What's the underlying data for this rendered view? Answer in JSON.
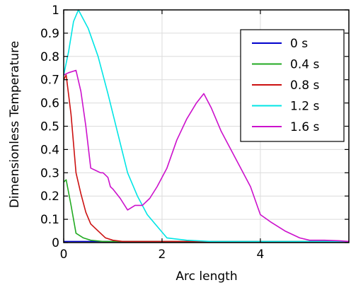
{
  "chart_data": {
    "type": "line",
    "title": "",
    "xlabel": "Arc length",
    "ylabel": "Dimensionless Temperature",
    "xlim": [
      0,
      5.8
    ],
    "ylim": [
      0,
      1
    ],
    "xticks": [
      0,
      2,
      4
    ],
    "xtick_labels": [
      "0",
      "2",
      "4"
    ],
    "yticks": [
      0,
      0.1,
      0.2,
      0.3,
      0.4,
      0.5,
      0.6,
      0.7,
      0.8,
      0.9,
      1.0
    ],
    "ytick_labels": [
      "0",
      "0.1",
      "0.2",
      "0.3",
      "0.4",
      "0.5",
      "0.6",
      "0.7",
      "0.8",
      "0.9",
      "1"
    ],
    "grid": true,
    "legend_position": "top-right",
    "series": [
      {
        "name": "0 s",
        "color": "#0000cd",
        "x": [
          0,
          1,
          2,
          3,
          4,
          5,
          5.8
        ],
        "y": [
          0.005,
          0.005,
          0.005,
          0.005,
          0.005,
          0.005,
          0.005
        ]
      },
      {
        "name": "0.4 s",
        "color": "#22aa22",
        "x": [
          0,
          0.05,
          0.15,
          0.25,
          0.4,
          0.55,
          0.8,
          1.0,
          1.5,
          2,
          3,
          4,
          5,
          5.8
        ],
        "y": [
          0.26,
          0.27,
          0.16,
          0.04,
          0.02,
          0.01,
          0.005,
          0.005,
          0.005,
          0.005,
          0.005,
          0.005,
          0.005,
          0.005
        ]
      },
      {
        "name": "0.8 s",
        "color": "#cc1111",
        "x": [
          0,
          0.05,
          0.15,
          0.25,
          0.35,
          0.45,
          0.55,
          0.7,
          0.85,
          1.0,
          1.2,
          1.5,
          2,
          3,
          4,
          5,
          5.8
        ],
        "y": [
          0.7,
          0.72,
          0.55,
          0.3,
          0.21,
          0.13,
          0.08,
          0.05,
          0.02,
          0.01,
          0.005,
          0.005,
          0.005,
          0.005,
          0.005,
          0.005,
          0.005
        ]
      },
      {
        "name": "1.2 s",
        "color": "#00e5e5",
        "x": [
          0,
          0.1,
          0.2,
          0.3,
          0.5,
          0.7,
          0.9,
          1.1,
          1.3,
          1.5,
          1.7,
          1.9,
          2.1,
          2.5,
          3,
          4,
          5,
          5.8
        ],
        "y": [
          0.72,
          0.82,
          0.95,
          1.0,
          0.92,
          0.8,
          0.64,
          0.47,
          0.3,
          0.2,
          0.12,
          0.07,
          0.02,
          0.01,
          0.005,
          0.005,
          0.005,
          0.005
        ]
      },
      {
        "name": "1.6 s",
        "color": "#cc11cc",
        "x": [
          0,
          0.1,
          0.25,
          0.35,
          0.45,
          0.55,
          0.65,
          0.75,
          0.8,
          0.85,
          0.9,
          0.95,
          1.0,
          1.15,
          1.3,
          1.45,
          1.6,
          1.75,
          1.9,
          2.1,
          2.3,
          2.5,
          2.7,
          2.85,
          3.0,
          3.2,
          3.5,
          3.8,
          4.0,
          4.2,
          4.5,
          4.8,
          5.0,
          5.3,
          5.6,
          5.8
        ],
        "y": [
          0.72,
          0.73,
          0.74,
          0.65,
          0.5,
          0.32,
          0.31,
          0.3,
          0.3,
          0.29,
          0.28,
          0.24,
          0.23,
          0.19,
          0.14,
          0.16,
          0.16,
          0.19,
          0.24,
          0.32,
          0.44,
          0.53,
          0.6,
          0.64,
          0.58,
          0.48,
          0.36,
          0.24,
          0.12,
          0.09,
          0.05,
          0.02,
          0.01,
          0.01,
          0.008,
          0.005
        ]
      }
    ]
  }
}
